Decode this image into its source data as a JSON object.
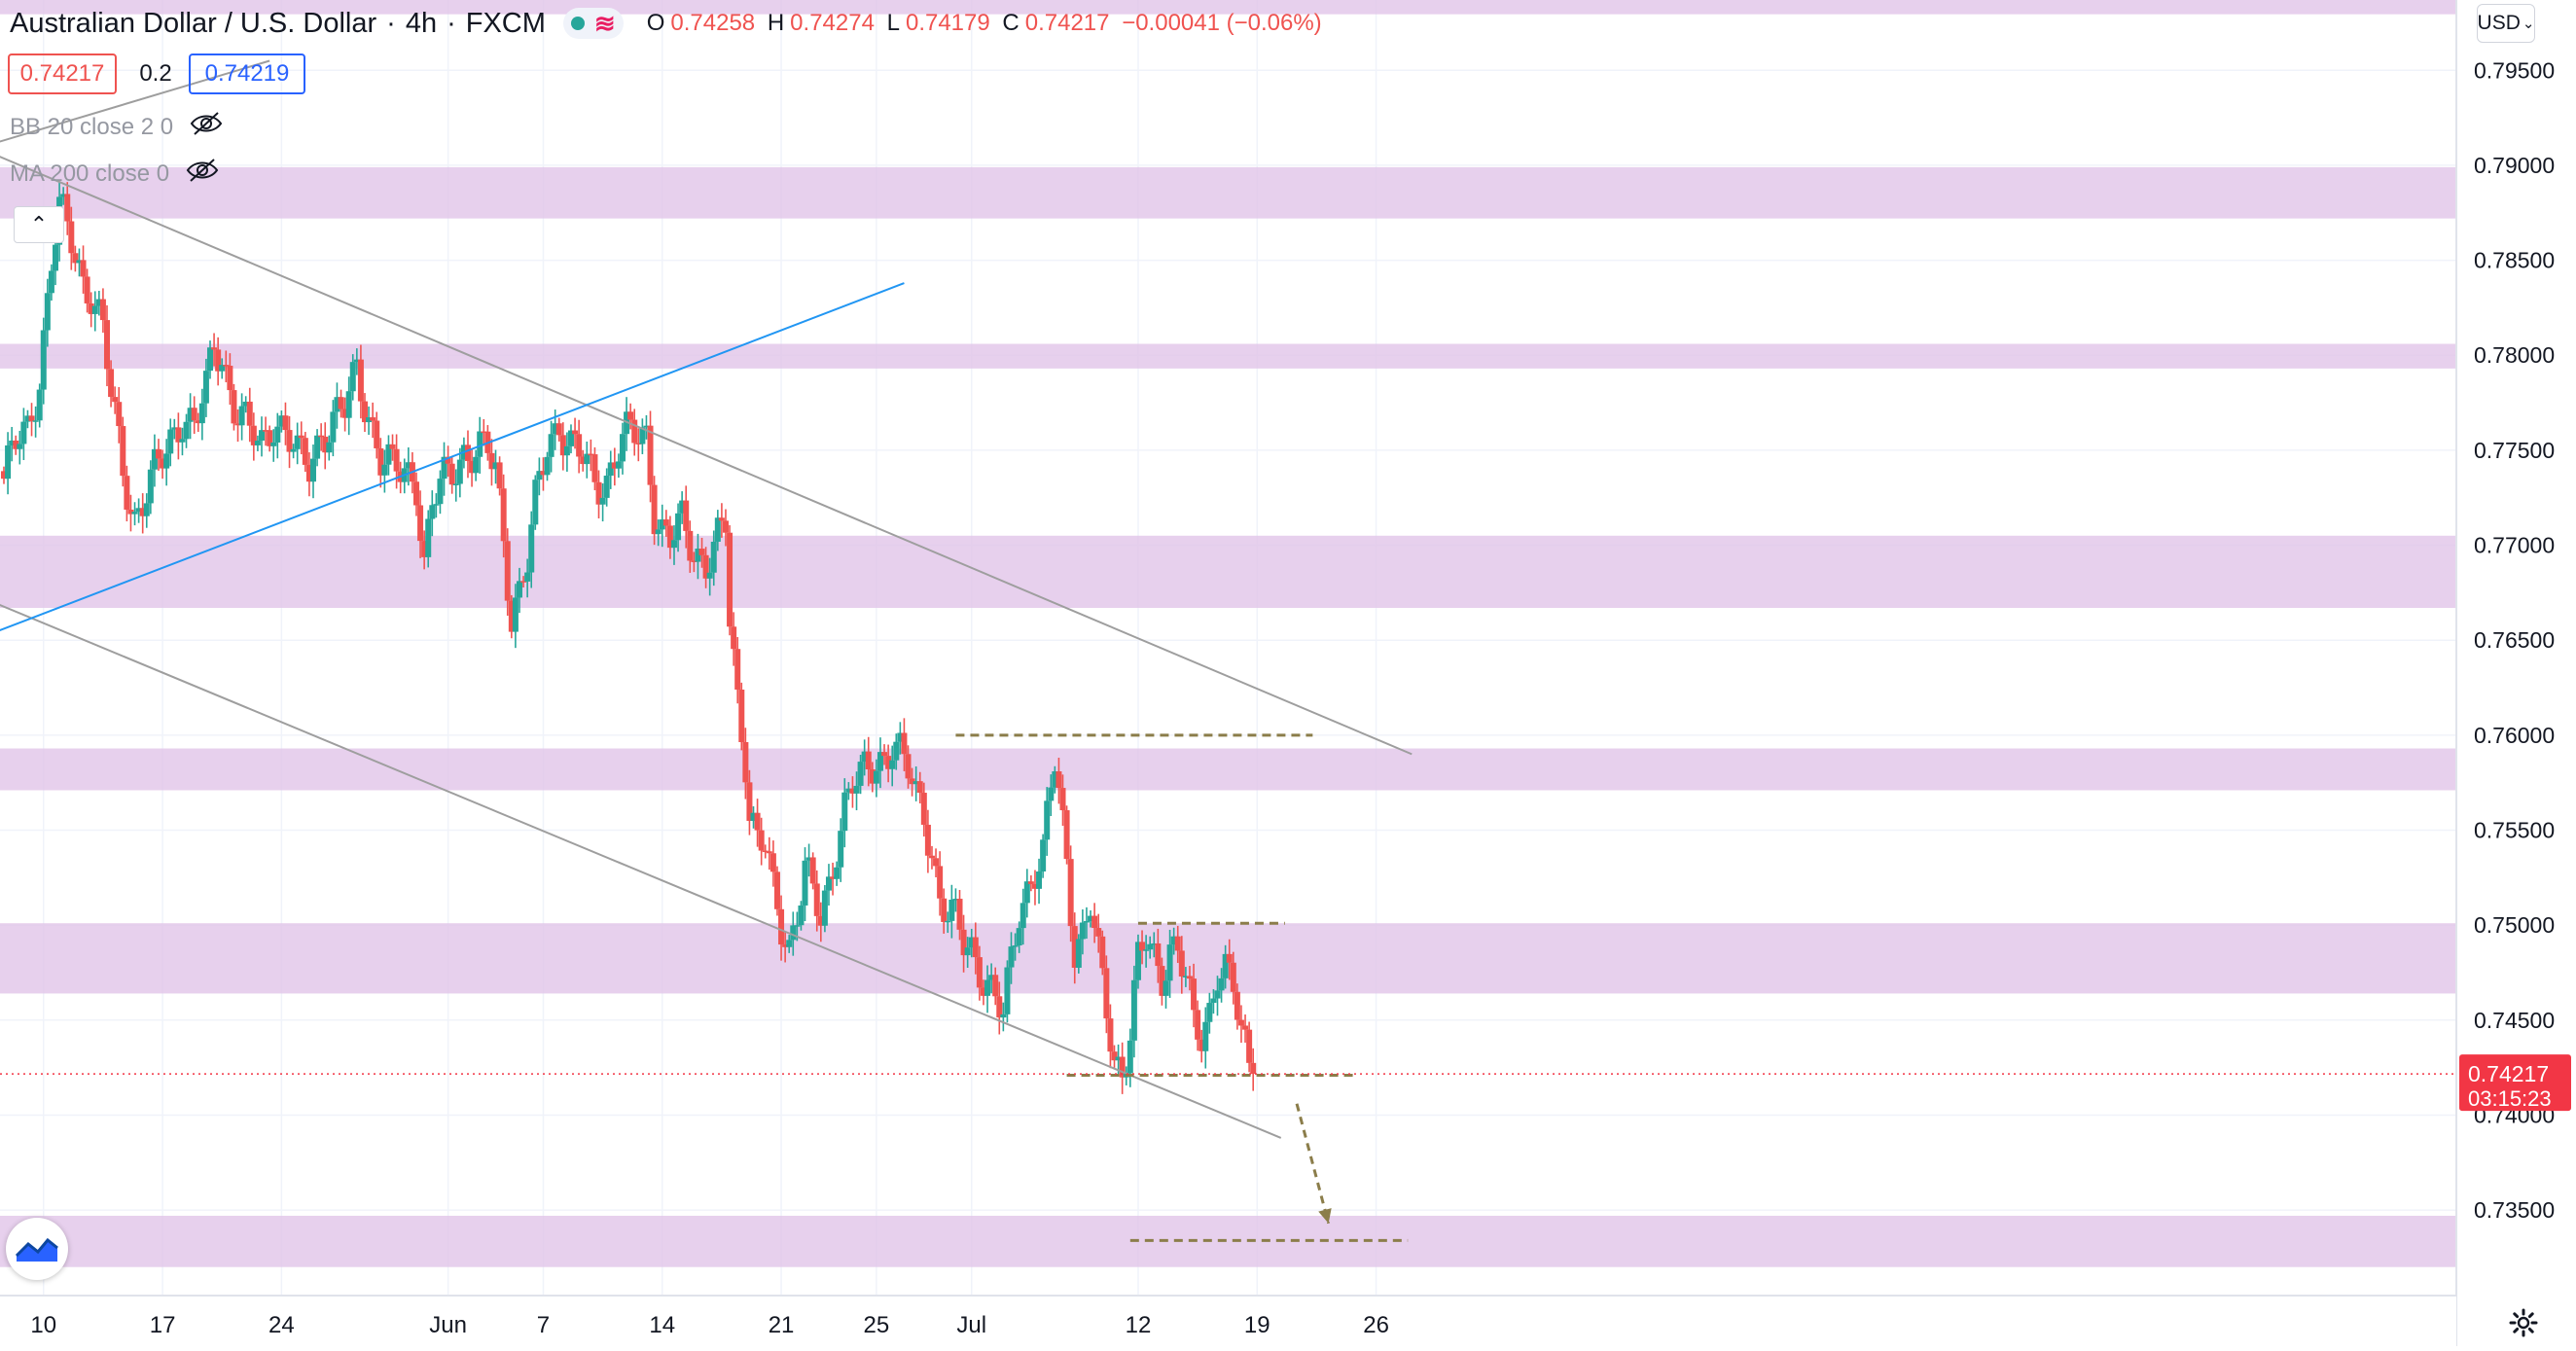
{
  "header": {
    "symbol": "Australian Dollar / U.S. Dollar",
    "timeframe": "4h",
    "source": "FXCM",
    "ohlc": {
      "o_label": "O",
      "o": "0.74258",
      "h_label": "H",
      "h": "0.74274",
      "l_label": "L",
      "l": "0.74179",
      "c_label": "C",
      "c": "0.74217",
      "change": "−0.00041 (−0.06%)"
    }
  },
  "trade": {
    "bid": "0.74217",
    "spread": "0.2",
    "ask": "0.74219"
  },
  "indicators": [
    {
      "label": "BB 20 close 2 0"
    },
    {
      "label": "MA 200 close 0"
    }
  ],
  "price_scale": {
    "currency": "USD",
    "last_price": "0.74217",
    "countdown": "03:15:23"
  },
  "colors": {
    "up": "#26a69a",
    "down": "#ef5350",
    "zone": "#e1c4e9",
    "trendline": "#9e9e9e",
    "blue_line": "#2196f3",
    "dashed": "#8b7d4a",
    "last_price": "#f23645"
  },
  "icons": {
    "eye_off": "eye-off-icon",
    "collapse": "chevron-up-icon",
    "logo": "tradingview-logo-icon",
    "settings": "gear-icon",
    "dropdown": "chevron-down-icon"
  },
  "chart_data": {
    "type": "candlestick",
    "instrument": "AUDUSD",
    "interval": "4h",
    "ylim": [
      0.7305,
      0.7987
    ],
    "y_ticks": [
      "0.73500",
      "0.74000",
      "0.74500",
      "0.75000",
      "0.75500",
      "0.76000",
      "0.76500",
      "0.77000",
      "0.77500",
      "0.78000",
      "0.78500",
      "0.79000",
      "0.79500"
    ],
    "x_ticks": [
      {
        "label": "10",
        "i": 10
      },
      {
        "label": "17",
        "i": 40
      },
      {
        "label": "24",
        "i": 70
      },
      {
        "label": "Jun",
        "i": 112
      },
      {
        "label": "7",
        "i": 136
      },
      {
        "label": "14",
        "i": 166
      },
      {
        "label": "21",
        "i": 196
      },
      {
        "label": "25",
        "i": 220
      },
      {
        "label": "Jul",
        "i": 244
      },
      {
        "label": "12",
        "i": 286
      },
      {
        "label": "19",
        "i": 316
      },
      {
        "label": "26",
        "i": 346
      }
    ],
    "n_slots": 366,
    "candle_anchors": [
      [
        0,
        0.7735
      ],
      [
        3,
        0.7752
      ],
      [
        6,
        0.776
      ],
      [
        9,
        0.779
      ],
      [
        12,
        0.785
      ],
      [
        14,
        0.7875
      ],
      [
        17,
        0.786
      ],
      [
        20,
        0.784
      ],
      [
        22,
        0.7835
      ],
      [
        25,
        0.7812
      ],
      [
        27,
        0.7778
      ],
      [
        30,
        0.774
      ],
      [
        33,
        0.7715
      ],
      [
        36,
        0.7728
      ],
      [
        39,
        0.774
      ],
      [
        42,
        0.7755
      ],
      [
        45,
        0.777
      ],
      [
        48,
        0.7762
      ],
      [
        51,
        0.778
      ],
      [
        53,
        0.7805
      ],
      [
        55,
        0.78
      ],
      [
        58,
        0.7775
      ],
      [
        62,
        0.7758
      ],
      [
        65,
        0.7752
      ],
      [
        68,
        0.7768
      ],
      [
        71,
        0.776
      ],
      [
        74,
        0.7745
      ],
      [
        77,
        0.7742
      ],
      [
        80,
        0.776
      ],
      [
        83,
        0.7765
      ],
      [
        86,
        0.777
      ],
      [
        89,
        0.7793
      ],
      [
        92,
        0.777
      ],
      [
        95,
        0.7745
      ],
      [
        98,
        0.7738
      ],
      [
        101,
        0.774
      ],
      [
        104,
        0.7735
      ],
      [
        106,
        0.769
      ],
      [
        108,
        0.772
      ],
      [
        110,
        0.773
      ],
      [
        113,
        0.774
      ],
      [
        116,
        0.775
      ],
      [
        119,
        0.7748
      ],
      [
        122,
        0.7748
      ],
      [
        124,
        0.774
      ],
      [
        126,
        0.7705
      ],
      [
        128,
        0.7665
      ],
      [
        130,
        0.7675
      ],
      [
        132,
        0.769
      ],
      [
        134,
        0.772
      ],
      [
        137,
        0.7755
      ],
      [
        140,
        0.7765
      ],
      [
        143,
        0.775
      ],
      [
        146,
        0.7745
      ],
      [
        149,
        0.7735
      ],
      [
        152,
        0.7735
      ],
      [
        155,
        0.775
      ],
      [
        158,
        0.7758
      ],
      [
        162,
        0.776
      ],
      [
        164,
        0.772
      ],
      [
        166,
        0.7705
      ],
      [
        168,
        0.77
      ],
      [
        171,
        0.7712
      ],
      [
        174,
        0.77
      ],
      [
        177,
        0.769
      ],
      [
        180,
        0.77
      ],
      [
        182,
        0.771
      ],
      [
        183,
        0.766
      ],
      [
        185,
        0.762
      ],
      [
        187,
        0.759
      ],
      [
        188,
        0.756
      ],
      [
        190,
        0.7545
      ],
      [
        192,
        0.754
      ],
      [
        194,
        0.7515
      ],
      [
        196,
        0.75
      ],
      [
        198,
        0.749
      ],
      [
        200,
        0.751
      ],
      [
        202,
        0.753
      ],
      [
        204,
        0.7515
      ],
      [
        206,
        0.75
      ],
      [
        208,
        0.752
      ],
      [
        210,
        0.7545
      ],
      [
        212,
        0.7565
      ],
      [
        214,
        0.7575
      ],
      [
        216,
        0.7575
      ],
      [
        218,
        0.758
      ],
      [
        220,
        0.7585
      ],
      [
        222,
        0.759
      ],
      [
        224,
        0.7598
      ],
      [
        226,
        0.759
      ],
      [
        228,
        0.758
      ],
      [
        230,
        0.7565
      ],
      [
        232,
        0.756
      ],
      [
        234,
        0.754
      ],
      [
        236,
        0.7515
      ],
      [
        238,
        0.7505
      ],
      [
        240,
        0.75
      ],
      [
        242,
        0.749
      ],
      [
        244,
        0.7488
      ],
      [
        246,
        0.748
      ],
      [
        248,
        0.747
      ],
      [
        250,
        0.746
      ],
      [
        252,
        0.745
      ],
      [
        254,
        0.748
      ],
      [
        256,
        0.751
      ],
      [
        258,
        0.752
      ],
      [
        260,
        0.753
      ],
      [
        262,
        0.7535
      ],
      [
        264,
        0.757
      ],
      [
        265,
        0.7585
      ],
      [
        266,
        0.757
      ],
      [
        268,
        0.7535
      ],
      [
        270,
        0.749
      ],
      [
        272,
        0.7495
      ],
      [
        274,
        0.751
      ],
      [
        276,
        0.748
      ],
      [
        278,
        0.7455
      ],
      [
        280,
        0.743
      ],
      [
        282,
        0.7425
      ],
      [
        284,
        0.7445
      ],
      [
        286,
        0.748
      ],
      [
        288,
        0.749
      ],
      [
        290,
        0.748
      ],
      [
        292,
        0.7475
      ],
      [
        294,
        0.749
      ],
      [
        296,
        0.749
      ],
      [
        298,
        0.747
      ],
      [
        300,
        0.7445
      ],
      [
        302,
        0.744
      ],
      [
        304,
        0.7455
      ],
      [
        306,
        0.748
      ],
      [
        308,
        0.7478
      ],
      [
        310,
        0.7465
      ],
      [
        312,
        0.744
      ],
      [
        314,
        0.7425
      ],
      [
        315,
        0.7422
      ]
    ],
    "zones": [
      [
        0.79795,
        0.7987
      ],
      [
        0.7872,
        0.7899
      ],
      [
        0.7793,
        0.7806
      ],
      [
        0.7667,
        0.7705
      ],
      [
        0.7571,
        0.7593
      ],
      [
        0.7464,
        0.7501
      ],
      [
        0.732,
        0.7347
      ]
    ],
    "trendlines": [
      {
        "kind": "gray",
        "p1": [
          -5,
          0.791
        ],
        "p2": [
          67,
          0.7955
        ]
      },
      {
        "kind": "gray",
        "p1": [
          -5,
          0.7908
        ],
        "p2": [
          355,
          0.759
        ]
      },
      {
        "kind": "gray",
        "p1": [
          -5,
          0.7672
        ],
        "p2": [
          322,
          0.7388
        ]
      },
      {
        "kind": "blue",
        "p1": [
          -5,
          0.7652
        ],
        "p2": [
          227,
          0.7838
        ]
      }
    ],
    "dashed_levels": [
      {
        "from": 240,
        "to": 330,
        "y": 0.76
      },
      {
        "from": 286,
        "to": 323,
        "y": 0.7501
      },
      {
        "from": 268,
        "to": 341,
        "y": 0.7421
      },
      {
        "from": 284,
        "to": 354,
        "y": 0.7334
      }
    ],
    "arrow": {
      "from": [
        326,
        0.7406
      ],
      "to": [
        334,
        0.7343
      ]
    },
    "last_price": 0.74217
  }
}
